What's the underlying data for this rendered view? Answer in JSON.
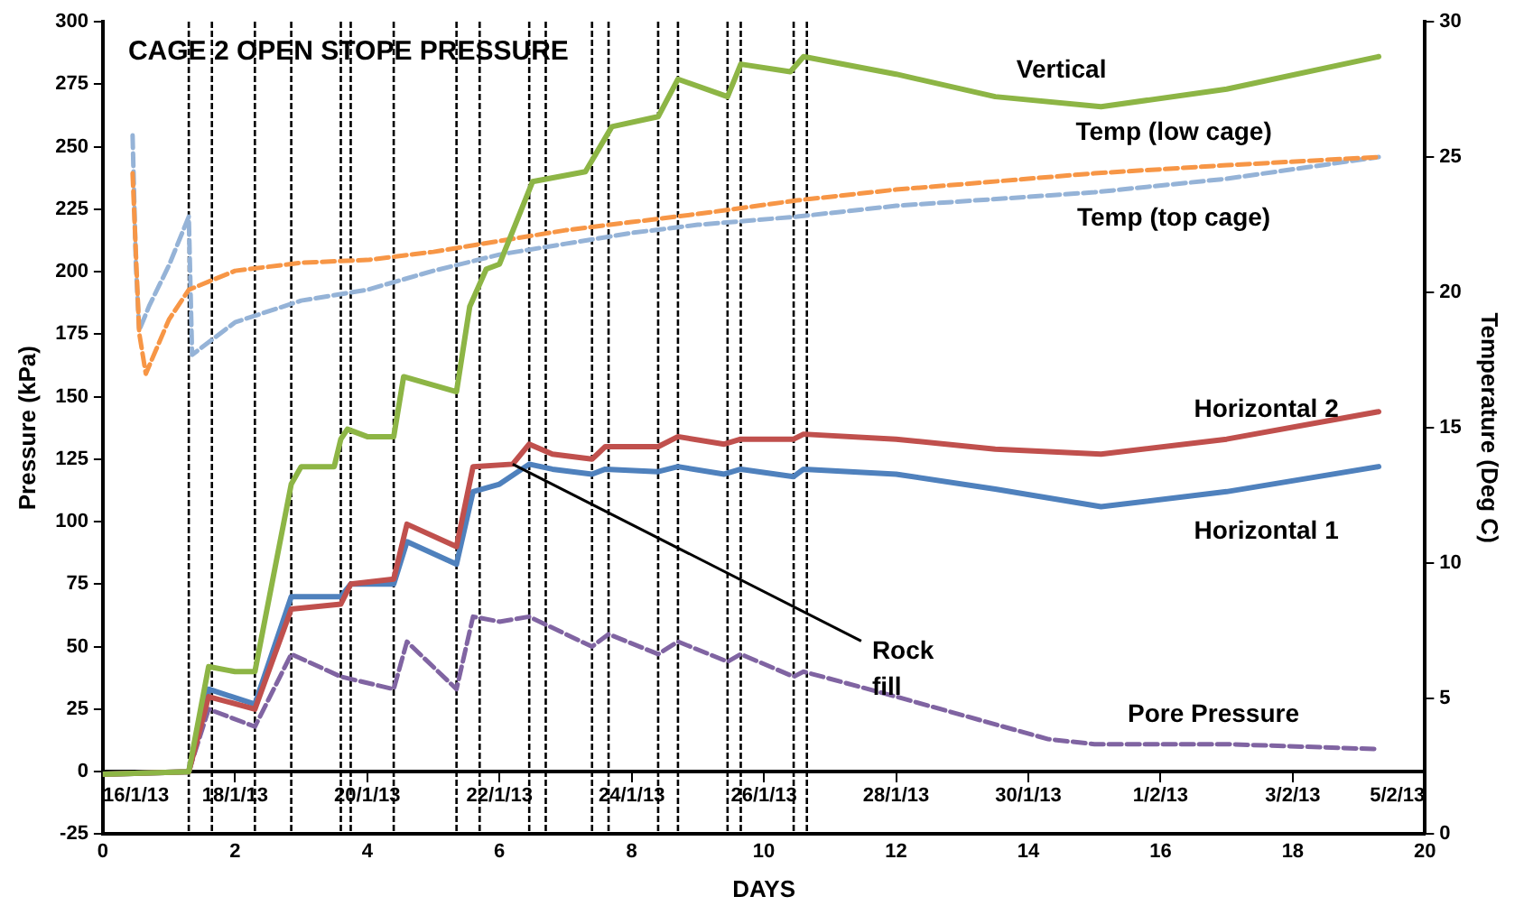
{
  "chart_data": {
    "type": "line",
    "title": "CAGE 2 OPEN STOPE PRESSURE",
    "xlabel": "DAYS",
    "ylabel": "Pressure (kPa)",
    "y2label": "Temperature (Deg C)",
    "xlim": [
      0,
      20
    ],
    "xticks": [
      0,
      2,
      4,
      6,
      8,
      10,
      12,
      14,
      16,
      18,
      20
    ],
    "x2lim": [
      "--01-16",
      "--02-05"
    ],
    "x2ticks": [
      {
        "value": "--01-16",
        "label": "16/1/13"
      },
      {
        "value": "--01-18",
        "label": "18/1/13"
      },
      {
        "value": "--01-20",
        "label": "20/1/13"
      },
      {
        "value": "--01-22",
        "label": "22/1/13"
      },
      {
        "value": "--01-24",
        "label": "24/1/13"
      },
      {
        "value": "--01-26",
        "label": "26/1/13"
      },
      {
        "value": "--01-28",
        "label": "28/1/13"
      },
      {
        "value": "--01-30",
        "label": "30/1/13"
      },
      {
        "value": "--02-01",
        "label": "1/2/13"
      },
      {
        "value": "--02-03",
        "label": "3/2/13"
      },
      {
        "value": "--02-05",
        "label": "5/2/13"
      }
    ],
    "ylim": [
      -25,
      300
    ],
    "yticks": [
      -25,
      0,
      25,
      50,
      75,
      100,
      125,
      150,
      175,
      200,
      225,
      250,
      275,
      300
    ],
    "y2lim": [
      0,
      30
    ],
    "y2ticks": [
      0,
      5,
      10,
      15,
      20,
      25,
      30
    ],
    "grid": false,
    "legend": false,
    "marker": "none",
    "series": [
      {
        "name": "Vertical",
        "color": "#8db545",
        "line_style": "solid",
        "x": [
          0,
          1.3,
          1.6,
          2.0,
          2.3,
          2.85,
          3.0,
          3.5,
          3.6,
          3.7,
          4.0,
          4.4,
          4.55,
          5.35,
          5.55,
          5.8,
          6.0,
          6.5,
          7.3,
          7.7,
          8.4,
          8.7,
          9.45,
          9.65,
          10.4,
          10.6,
          12,
          13.5,
          15.1,
          17,
          19.3
        ],
        "values": [
          -1,
          0,
          42,
          40,
          40,
          115,
          122,
          122,
          133,
          137,
          134,
          134,
          158,
          152,
          186,
          201,
          203,
          236,
          240,
          258,
          262,
          277,
          270,
          283,
          280,
          286,
          279,
          270,
          266,
          273,
          286
        ]
      },
      {
        "name": "Horizontal 2",
        "color": "#c0504d",
        "line_style": "solid",
        "x": [
          0,
          1.3,
          1.6,
          2.3,
          2.85,
          3.6,
          3.75,
          4.4,
          4.6,
          5.35,
          5.6,
          6.2,
          6.45,
          6.8,
          7.4,
          7.6,
          8.4,
          8.7,
          9.4,
          9.65,
          10.45,
          10.6,
          12,
          13.5,
          15.1,
          17,
          19.3
        ],
        "values": [
          -1,
          0,
          30,
          25,
          65,
          67,
          75,
          77,
          99,
          90,
          122,
          123,
          131,
          127,
          125,
          130,
          130,
          134,
          131,
          133,
          133,
          135,
          133,
          129,
          127,
          133,
          144
        ]
      },
      {
        "name": "Horizontal 1",
        "color": "#4f81bd",
        "line_style": "solid",
        "x": [
          0,
          1.3,
          1.6,
          2.3,
          2.85,
          3.6,
          3.75,
          4.4,
          4.6,
          5.35,
          5.6,
          6.0,
          6.45,
          6.8,
          7.4,
          7.6,
          8.4,
          8.7,
          9.4,
          9.65,
          10.45,
          10.6,
          12,
          13.5,
          15.1,
          17,
          19.3
        ],
        "values": [
          -1,
          0,
          33,
          27,
          70,
          70,
          75,
          75,
          92,
          83,
          112,
          115,
          123,
          121,
          119,
          121,
          120,
          122,
          119,
          121,
          118,
          121,
          119,
          113,
          106,
          112,
          122
        ]
      },
      {
        "name": "Pore Pressure",
        "color": "#8064a2",
        "line_style": "dashed",
        "x": [
          1.3,
          1.6,
          2.3,
          2.85,
          3.6,
          4.4,
          4.6,
          5.35,
          5.6,
          6.0,
          6.45,
          7.4,
          7.65,
          8.4,
          8.7,
          9.45,
          9.65,
          10.45,
          10.6,
          12,
          14.3,
          15,
          17,
          19.3
        ],
        "values": [
          0,
          25,
          18,
          47,
          38,
          33,
          52,
          33,
          62,
          60,
          62,
          50,
          55,
          47,
          52,
          44,
          47,
          38,
          40,
          30,
          13,
          11,
          11,
          9
        ]
      },
      {
        "name": "Temp (low cage)",
        "color": "#f79646",
        "line_style": "dashed",
        "axis": "y2",
        "x": [
          0.45,
          0.55,
          0.65,
          1.0,
          1.3,
          2,
          3,
          4,
          5,
          6,
          7,
          8,
          9,
          10.5,
          12,
          15,
          17,
          19.3
        ],
        "values": [
          24.4,
          18.5,
          17.0,
          19.0,
          20.1,
          20.8,
          21.1,
          21.2,
          21.5,
          21.9,
          22.3,
          22.6,
          22.9,
          23.4,
          23.8,
          24.4,
          24.7,
          25.0
        ]
      },
      {
        "name": "Temp (top cage)",
        "color": "#95b3d7",
        "line_style": "dashed",
        "axis": "y2",
        "x": [
          0.45,
          0.5,
          0.55,
          0.7,
          1.0,
          1.3,
          1.35,
          2,
          3,
          4,
          5,
          6,
          7,
          8,
          9,
          10.5,
          12,
          15,
          17,
          19.3
        ],
        "values": [
          25.8,
          21.0,
          18.6,
          19.5,
          21.0,
          22.8,
          17.7,
          18.9,
          19.7,
          20.1,
          20.8,
          21.4,
          21.8,
          22.2,
          22.5,
          22.8,
          23.2,
          23.7,
          24.2,
          25.0
        ]
      }
    ],
    "ref_lines": [
      {
        "axis": "x",
        "value": 1.3,
        "color": "#000000",
        "line_style": "dashed"
      },
      {
        "axis": "x",
        "value": 1.65,
        "color": "#000000",
        "line_style": "dashed"
      },
      {
        "axis": "x",
        "value": 2.3,
        "color": "#000000",
        "line_style": "dashed"
      },
      {
        "axis": "x",
        "value": 2.85,
        "color": "#000000",
        "line_style": "dashed"
      },
      {
        "axis": "x",
        "value": 3.6,
        "color": "#000000",
        "line_style": "dashed"
      },
      {
        "axis": "x",
        "value": 3.75,
        "color": "#000000",
        "line_style": "dashed"
      },
      {
        "axis": "x",
        "value": 4.4,
        "color": "#000000",
        "line_style": "dashed"
      },
      {
        "axis": "x",
        "value": 5.35,
        "color": "#000000",
        "line_style": "dashed"
      },
      {
        "axis": "x",
        "value": 5.7,
        "color": "#000000",
        "line_style": "dashed"
      },
      {
        "axis": "x",
        "value": 6.45,
        "color": "#000000",
        "line_style": "dashed"
      },
      {
        "axis": "x",
        "value": 6.7,
        "color": "#000000",
        "line_style": "dashed"
      },
      {
        "axis": "x",
        "value": 7.4,
        "color": "#000000",
        "line_style": "dashed"
      },
      {
        "axis": "x",
        "value": 7.65,
        "color": "#000000",
        "line_style": "dashed"
      },
      {
        "axis": "x",
        "value": 8.4,
        "color": "#000000",
        "line_style": "dashed"
      },
      {
        "axis": "x",
        "value": 8.7,
        "color": "#000000",
        "line_style": "dashed"
      },
      {
        "axis": "x",
        "value": 9.45,
        "color": "#000000",
        "line_style": "dashed"
      },
      {
        "axis": "x",
        "value": 9.65,
        "color": "#000000",
        "line_style": "dashed"
      },
      {
        "axis": "x",
        "value": 10.45,
        "color": "#000000",
        "line_style": "dashed"
      },
      {
        "axis": "x",
        "value": 10.65,
        "color": "#000000",
        "line_style": "dashed"
      }
    ],
    "annotations": [
      {
        "text": "Rock fill",
        "x": 6.2,
        "y": 123
      }
    ]
  }
}
